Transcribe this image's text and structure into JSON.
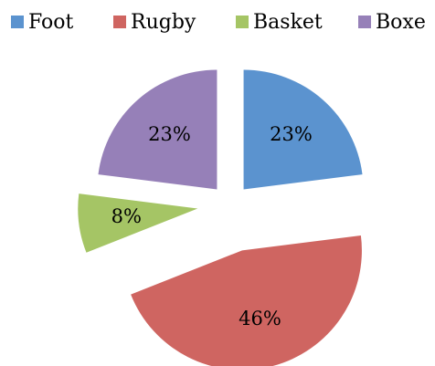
{
  "chart_data": {
    "type": "pie",
    "categories": [
      "Foot",
      "Rugby",
      "Basket",
      "Boxe"
    ],
    "values": [
      23,
      46,
      8,
      23
    ],
    "value_labels": [
      "23%",
      "46%",
      "8%",
      "23%"
    ],
    "colors": [
      "#5b93cf",
      "#cf6561",
      "#a5c565",
      "#9680b8"
    ],
    "legend": "top"
  }
}
